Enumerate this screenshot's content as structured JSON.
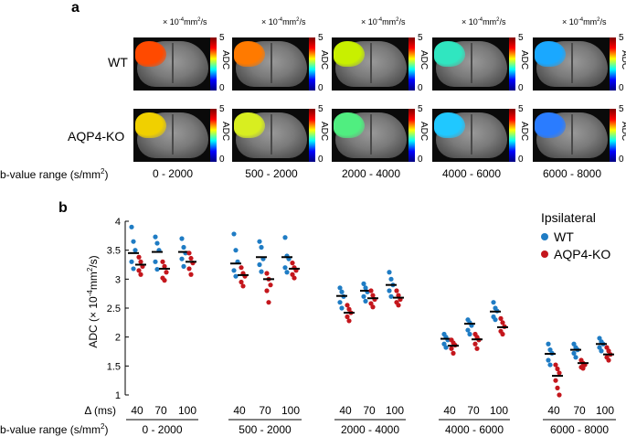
{
  "panel_a": {
    "label": "a",
    "unit_text": "× 10",
    "unit_exp": "-4",
    "unit_rest": "mm",
    "unit_sq": "2",
    "unit_end": "/s",
    "rows": [
      "WT",
      "AQP4-KO"
    ],
    "colorbar": {
      "max": "5",
      "min": "0",
      "label": "ADC"
    },
    "brange_title": "b-value range (s/mm",
    "brange_sq": "2",
    "brange_close": ")",
    "columns": [
      "0 - 2000",
      "500 - 2000",
      "2000 - 4000",
      "4000 - 6000",
      "6000 - 8000"
    ],
    "colors": {
      "wt": [
        "#ff4a00",
        "#ff7a00",
        "#c8f000",
        "#30e6c0",
        "#1aa8ff"
      ],
      "ko": [
        "#f0d000",
        "#d8ee20",
        "#50ee80",
        "#20c8ff",
        "#2a7cff"
      ]
    }
  },
  "panel_b": {
    "label": "b",
    "legend": {
      "title": "Ipsilateral",
      "wt": "WT",
      "ko": "AQP4-KO"
    },
    "colors": {
      "wt": "#1f7cc4",
      "ko": "#c4161c"
    }
  },
  "chart_data": {
    "type": "scatter",
    "title": "",
    "ylabel_main": "ADC (× 10",
    "ylabel_exp": "-4",
    "ylabel_rest": "mm",
    "ylabel_sq": "2",
    "ylabel_end": "/s)",
    "ylim": [
      1,
      4
    ],
    "yticks": [
      "1",
      "1.5",
      "2",
      "2.5",
      "3",
      "3.5",
      "4"
    ],
    "delta_label": "Δ (ms)",
    "delta_values": [
      "40",
      "70",
      "100"
    ],
    "brange_title": "b-value range (s/mm",
    "brange_sq": "2",
    "brange_close": ")",
    "groups": [
      "0 - 2000",
      "500 - 2000",
      "2000 - 4000",
      "4000 - 6000",
      "6000 - 8000"
    ],
    "series": [
      {
        "name": "WT",
        "means": [
          [
            3.45,
            3.47,
            3.47
          ],
          [
            3.27,
            3.38,
            3.38
          ],
          [
            2.71,
            2.8,
            2.9
          ],
          [
            1.97,
            2.23,
            2.44
          ],
          [
            1.71,
            1.78,
            1.88
          ]
        ],
        "points": [
          [
            [
              3.9,
              3.65,
              3.5,
              3.3,
              3.18
            ],
            [
              3.73,
              3.62,
              3.5,
              3.3,
              3.17
            ],
            [
              3.7,
              3.55,
              3.45,
              3.35,
              3.22
            ]
          ],
          [
            [
              3.78,
              3.5,
              3.3,
              3.15,
              3.05
            ],
            [
              3.65,
              3.55,
              3.35,
              3.25,
              3.13
            ],
            [
              3.72,
              3.4,
              3.35,
              3.2,
              3.12
            ]
          ],
          [
            [
              2.85,
              2.78,
              2.7,
              2.6,
              2.5
            ],
            [
              2.92,
              2.85,
              2.78,
              2.7,
              2.62
            ],
            [
              3.12,
              3.0,
              2.9,
              2.8,
              2.7
            ]
          ],
          [
            [
              2.05,
              2.0,
              1.95,
              1.88,
              1.82
            ],
            [
              2.3,
              2.25,
              2.2,
              2.12,
              2.05
            ],
            [
              2.6,
              2.5,
              2.45,
              2.35,
              2.3
            ]
          ],
          [
            [
              1.88,
              1.78,
              1.72,
              1.6,
              1.52
            ],
            [
              1.88,
              1.82,
              1.78,
              1.72,
              1.65
            ],
            [
              1.98,
              1.92,
              1.88,
              1.82,
              1.76
            ]
          ]
        ]
      },
      {
        "name": "AQP4-KO",
        "means": [
          [
            3.25,
            3.18,
            3.3
          ],
          [
            3.07,
            3.0,
            3.18
          ],
          [
            2.42,
            2.67,
            2.68
          ],
          [
            1.85,
            1.96,
            2.17
          ],
          [
            1.33,
            1.55,
            1.7
          ]
        ],
        "points": [
          [
            [
              3.38,
              3.3,
              3.22,
              3.15,
              3.08
            ],
            [
              3.3,
              3.22,
              3.12,
              3.02,
              2.98
            ],
            [
              3.45,
              3.36,
              3.28,
              3.18,
              3.08
            ]
          ],
          [
            [
              3.2,
              3.1,
              3.05,
              2.95,
              2.88
            ],
            [
              3.1,
              3.0,
              2.9,
              2.8,
              2.6
            ],
            [
              3.28,
              3.2,
              3.15,
              3.08,
              3.02
            ]
          ],
          [
            [
              2.55,
              2.48,
              2.42,
              2.35,
              2.28
            ],
            [
              2.8,
              2.72,
              2.65,
              2.58,
              2.52
            ],
            [
              2.8,
              2.72,
              2.65,
              2.6,
              2.55
            ]
          ],
          [
            [
              1.95,
              1.9,
              1.86,
              1.8,
              1.72
            ],
            [
              2.05,
              2.0,
              1.95,
              1.88,
              1.8
            ],
            [
              2.32,
              2.25,
              2.18,
              2.1,
              2.05
            ]
          ],
          [
            [
              1.52,
              1.45,
              1.38,
              1.25,
              1.12,
              1.0
            ],
            [
              1.6,
              1.55,
              1.52,
              1.48,
              1.46
            ],
            [
              1.82,
              1.76,
              1.7,
              1.65,
              1.6
            ]
          ]
        ]
      }
    ]
  }
}
